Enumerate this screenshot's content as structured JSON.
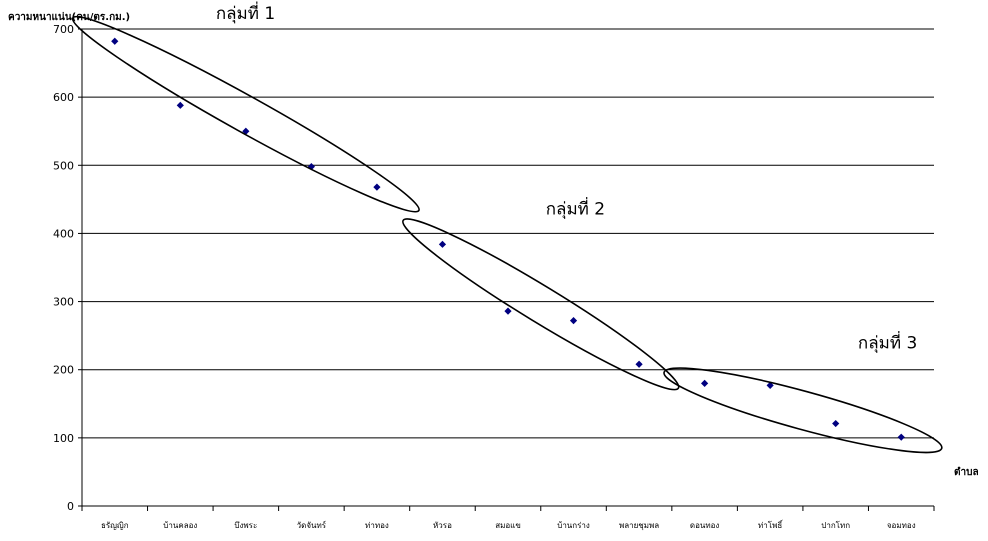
{
  "chart_data": {
    "type": "scatter",
    "ylabel": "ความหนาแน่น(คน/ตร.กม.)",
    "xlabel": "ตำบล",
    "ylim": [
      0,
      700
    ],
    "yticks": [
      0,
      100,
      200,
      300,
      400,
      500,
      600,
      700
    ],
    "grid": true,
    "marker_color": "#000080",
    "categories": [
      "ธรัญญิก",
      "บ้านคลอง",
      "บึงพระ",
      "วัดจันทร์",
      "ท่าทอง",
      "หัวรอ",
      "สมอแข",
      "บ้านกร่าง",
      "พลายชุมพล",
      "ดอนทอง",
      "ท่าโพธิ์",
      "ปากโทก",
      "จอมทอง"
    ],
    "values": [
      682,
      588,
      550,
      498,
      468,
      384,
      286,
      272,
      208,
      180,
      177,
      121,
      101
    ],
    "groups": [
      {
        "label": "กลุ่มที่ 1",
        "members": [
          0,
          4
        ]
      },
      {
        "label": "กลุ่มที่ 2",
        "members": [
          5,
          8
        ]
      },
      {
        "label": "กลุ่มที่ 3",
        "members": [
          9,
          12
        ]
      }
    ]
  }
}
